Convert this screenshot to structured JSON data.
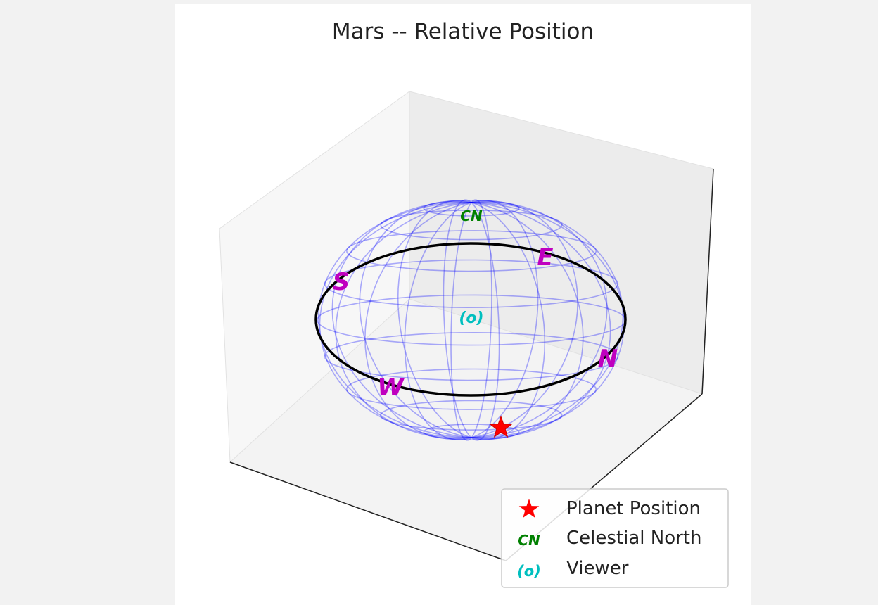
{
  "chart_data": {
    "type": "3d-sphere",
    "title": "Mars -- Relative Position",
    "grid": false,
    "legend_position": "lower-right",
    "sphere": {
      "wireframe_color": "#0000ff",
      "equator_color": "#000000"
    },
    "compass_labels": [
      "E",
      "N",
      "W",
      "S"
    ],
    "markers": {
      "planet": {
        "label": "Planet Position",
        "color": "#ff0000",
        "symbol": "star"
      },
      "celestial_north": {
        "label": "Celestial North",
        "text": "CN",
        "color": "#008000"
      },
      "viewer": {
        "label": "Viewer",
        "text": "(o)",
        "color": "#00bfbf"
      }
    },
    "legend": [
      {
        "label": "Planet Position"
      },
      {
        "label": "Celestial North"
      },
      {
        "label": "Viewer"
      }
    ]
  }
}
